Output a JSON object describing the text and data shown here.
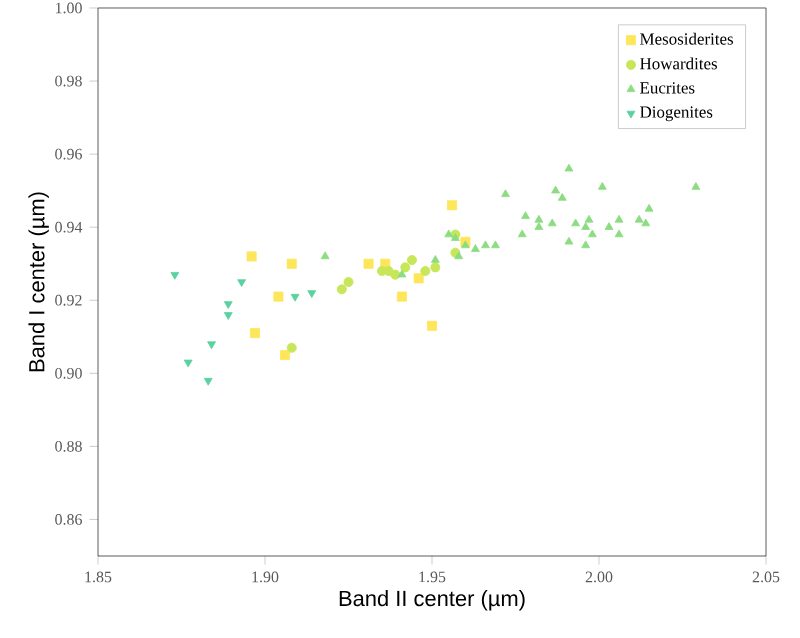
{
  "chart_data": {
    "type": "scatter",
    "xlabel": "Band II center (µm)",
    "ylabel": "Band I center (µm)",
    "xlim": [
      1.85,
      2.05
    ],
    "ylim": [
      0.85,
      1.0
    ],
    "xticks": [
      {
        "value": 1.85,
        "label": "1.85"
      },
      {
        "value": 1.9,
        "label": "1.90"
      },
      {
        "value": 1.95,
        "label": "1.95"
      },
      {
        "value": 2.0,
        "label": "2.00"
      },
      {
        "value": 2.05,
        "label": "2.05"
      }
    ],
    "yticks": [
      {
        "value": 0.86,
        "label": "0.86"
      },
      {
        "value": 0.88,
        "label": "0.88"
      },
      {
        "value": 0.9,
        "label": "0.90"
      },
      {
        "value": 0.92,
        "label": "0.92"
      },
      {
        "value": 0.94,
        "label": "0.94"
      },
      {
        "value": 0.96,
        "label": "0.96"
      },
      {
        "value": 0.98,
        "label": "0.98"
      },
      {
        "value": 1.0,
        "label": "1.00"
      }
    ],
    "grid": false,
    "legend": "top right",
    "series": [
      {
        "name": "Mesosiderites",
        "color": "#fde65a",
        "marker": "square",
        "x": [
          1.896,
          1.908,
          1.897,
          1.906,
          1.904,
          1.931,
          1.936,
          1.941,
          1.946,
          1.95,
          1.956,
          1.96
        ],
        "values": [
          0.932,
          0.93,
          0.911,
          0.905,
          0.921,
          0.93,
          0.93,
          0.921,
          0.926,
          0.913,
          0.946,
          0.936
        ]
      },
      {
        "name": "Howardites",
        "color": "#c8e65a",
        "marker": "circle",
        "x": [
          1.908,
          1.923,
          1.925,
          1.935,
          1.937,
          1.939,
          1.942,
          1.944,
          1.948,
          1.951,
          1.957,
          1.957
        ],
        "values": [
          0.907,
          0.923,
          0.925,
          0.928,
          0.928,
          0.927,
          0.929,
          0.931,
          0.928,
          0.929,
          0.938,
          0.933
        ]
      },
      {
        "name": "Eucrites",
        "color": "#8cdc82",
        "marker": "triangle",
        "x": [
          1.918,
          1.941,
          1.951,
          1.955,
          1.957,
          1.958,
          1.96,
          1.963,
          1.966,
          1.969,
          1.972,
          1.977,
          1.978,
          1.982,
          1.982,
          1.986,
          1.987,
          1.989,
          1.991,
          1.991,
          1.993,
          1.996,
          1.996,
          1.997,
          1.998,
          2.001,
          2.003,
          2.006,
          2.006,
          2.012,
          2.014,
          2.015,
          2.029
        ],
        "values": [
          0.932,
          0.927,
          0.931,
          0.938,
          0.937,
          0.932,
          0.935,
          0.934,
          0.935,
          0.935,
          0.949,
          0.938,
          0.943,
          0.94,
          0.942,
          0.941,
          0.95,
          0.948,
          0.956,
          0.936,
          0.941,
          0.935,
          0.94,
          0.942,
          0.938,
          0.951,
          0.94,
          0.938,
          0.942,
          0.942,
          0.941,
          0.945,
          0.951
        ]
      },
      {
        "name": "Diogenites",
        "color": "#5ad2a0",
        "marker": "triangle-down",
        "x": [
          1.873,
          1.877,
          1.883,
          1.884,
          1.889,
          1.889,
          1.893,
          1.909,
          1.914
        ],
        "values": [
          0.927,
          0.903,
          0.898,
          0.908,
          0.916,
          0.919,
          0.925,
          0.921,
          0.922
        ]
      }
    ]
  }
}
